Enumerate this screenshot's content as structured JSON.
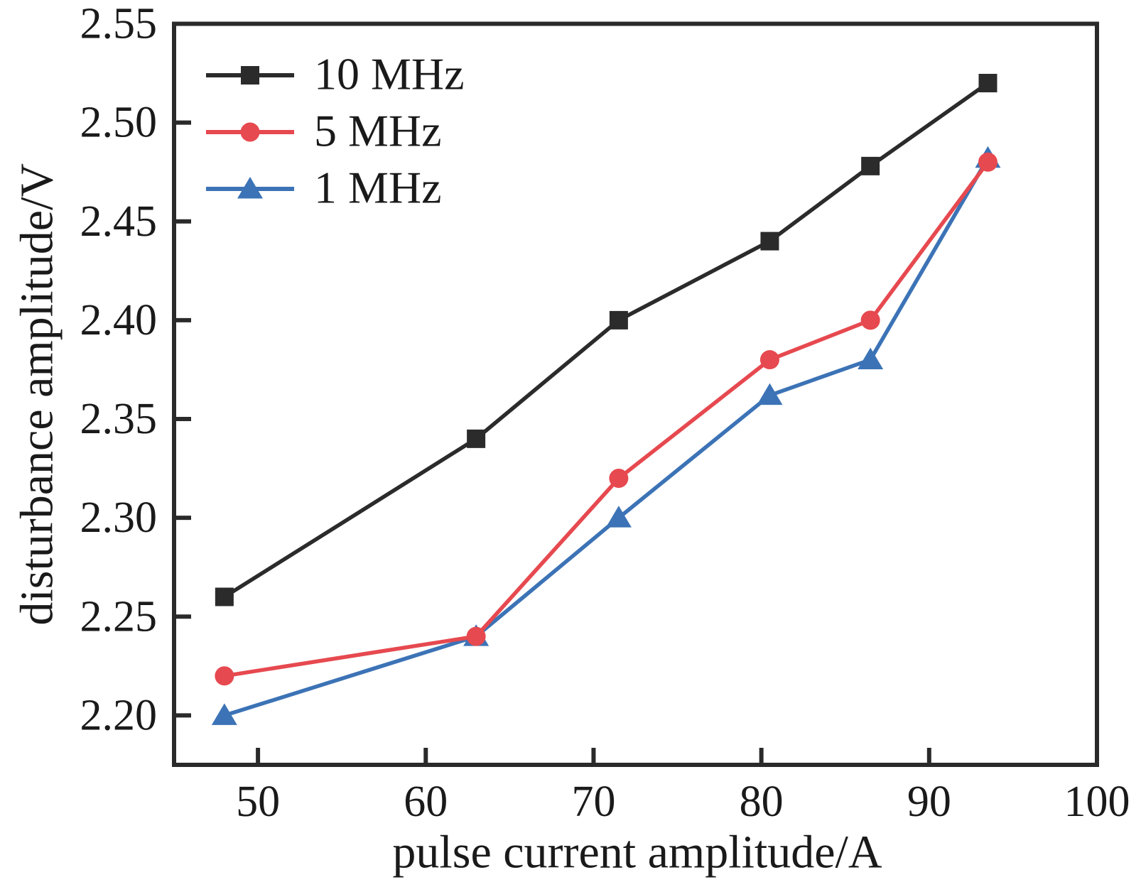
{
  "figure": {
    "background": "#ffffff",
    "text_color": "#1a1a1a",
    "frame_color": "#2a2a2a"
  },
  "chart_data": {
    "type": "line",
    "title": "",
    "xlabel": "pulse current amplitude/A",
    "ylabel": "disturbance amplitude/V",
    "xlim": [
      45,
      100
    ],
    "ylim": [
      2.175,
      2.55
    ],
    "x_ticks": [
      50,
      60,
      70,
      80,
      90,
      100
    ],
    "x_tick_labels": [
      "50",
      "60",
      "70",
      "80",
      "90",
      "100"
    ],
    "y_ticks": [
      2.2,
      2.25,
      2.3,
      2.35,
      2.4,
      2.45,
      2.5,
      2.55
    ],
    "y_tick_labels": [
      "2.20",
      "2.25",
      "2.30",
      "2.35",
      "2.40",
      "2.45",
      "2.50",
      "2.55"
    ],
    "grid": false,
    "legend": {
      "position": "top-left",
      "entries": [
        "10 MHz",
        "5 MHz",
        "1 MHz"
      ]
    },
    "x": [
      48,
      63,
      71.5,
      80.5,
      86.5,
      93.5
    ],
    "series": [
      {
        "name": "10 MHz",
        "marker": "square",
        "color": "#2b2b2b",
        "values": [
          2.26,
          2.34,
          2.4,
          2.44,
          2.478,
          2.52
        ]
      },
      {
        "name": "5 MHz",
        "marker": "circle",
        "color": "#e6494f",
        "values": [
          2.22,
          2.24,
          2.32,
          2.38,
          2.4,
          2.48
        ]
      },
      {
        "name": "1 MHz",
        "marker": "triangle",
        "color": "#3c73b6",
        "values": [
          2.2,
          2.24,
          2.3,
          2.362,
          2.38,
          2.482
        ]
      }
    ]
  }
}
